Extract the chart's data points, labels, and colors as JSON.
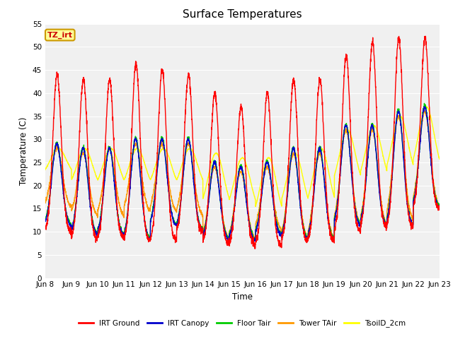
{
  "title": "Surface Temperatures",
  "ylabel": "Temperature (C)",
  "xlabel": "Time",
  "ylim": [
    0,
    55
  ],
  "yticks": [
    0,
    5,
    10,
    15,
    20,
    25,
    30,
    35,
    40,
    45,
    50,
    55
  ],
  "n_days": 15,
  "x_tick_labels": [
    "Jun 8",
    "Jun 9",
    "Jun 10",
    "Jun 11",
    "Jun 12",
    "Jun 13",
    "Jun 14",
    "Jun 15",
    "Jun 16",
    "Jun 17",
    "Jun 18",
    "Jun 19",
    "Jun 20",
    "Jun 21",
    "Jun 22",
    "Jun 23"
  ],
  "fig_bg_color": "#ffffff",
  "plot_bg_color": "#f0f0f0",
  "legend_entries": [
    "IRT Ground",
    "IRT Canopy",
    "Floor Tair",
    "Tower TAir",
    "TsoilD_2cm"
  ],
  "legend_colors": [
    "#ff0000",
    "#0000cc",
    "#00cc00",
    "#ff9900",
    "#ffff00"
  ],
  "annotation_text": "TZ_irt",
  "annotation_color": "#cc0000",
  "annotation_bg": "#ffff99",
  "annotation_border": "#cc9900",
  "ground_peaks": [
    44,
    43,
    43,
    46.5,
    45,
    44,
    40,
    37,
    40,
    43,
    43,
    48,
    51,
    52,
    52
  ],
  "ground_mins": [
    10,
    8.5,
    8.5,
    8,
    8,
    10,
    7.5,
    7,
    7,
    8,
    8,
    10,
    11,
    11,
    15
  ],
  "canopy_peaks": [
    29,
    28,
    28,
    30,
    30,
    30,
    25,
    24,
    25,
    28,
    28,
    33,
    33,
    36,
    37
  ],
  "canopy_mins": [
    11,
    9,
    9,
    8,
    11,
    10,
    8,
    8,
    9,
    8,
    8,
    11,
    11,
    11,
    15
  ],
  "floor_peaks": [
    29,
    28,
    28,
    30,
    30,
    30,
    25,
    24,
    25,
    28,
    28,
    33,
    33,
    36,
    37
  ],
  "floor_mins": [
    11,
    9,
    9,
    8,
    11,
    10,
    8,
    8,
    9,
    8,
    8,
    11,
    11,
    11,
    15
  ],
  "tower_peaks": [
    28,
    27,
    28,
    29,
    29,
    29,
    24,
    23,
    24,
    27,
    27,
    32,
    32,
    35,
    36
  ],
  "tower_mins": [
    15,
    13,
    13,
    14,
    14,
    13,
    8,
    8,
    10,
    8,
    8,
    11,
    11,
    12,
    15
  ],
  "soil_peaks": [
    28,
    28,
    28,
    28,
    28,
    28,
    27,
    26,
    26,
    27,
    28,
    32,
    33,
    35,
    37
  ],
  "soil_mins": [
    22,
    19,
    19,
    19,
    19,
    19,
    14,
    14,
    12,
    14,
    14,
    19,
    20,
    21,
    22
  ]
}
